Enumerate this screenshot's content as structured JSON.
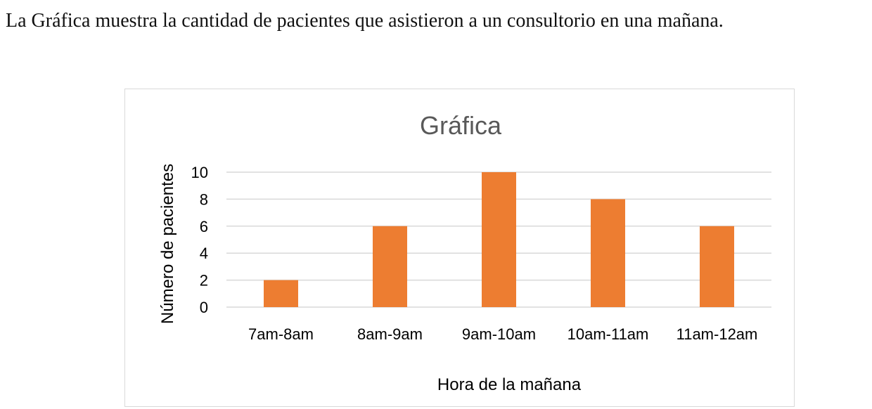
{
  "intro_text": "La Gráfica muestra la cantidad de pacientes que asistieron a un consultorio en una mañana.",
  "colors": {
    "bar": "#ED7D31",
    "grid": "#D9D9D9",
    "title": "#595959"
  },
  "chart_data": {
    "type": "bar",
    "title": "Gráfica",
    "xlabel": "Hora de la mañana",
    "ylabel": "Número de pacientes",
    "categories": [
      "7am-8am",
      "8am-9am",
      "9am-10am",
      "10am-11am",
      "11am-12am"
    ],
    "values": [
      2,
      6,
      10,
      8,
      6
    ],
    "ylim": [
      0,
      10
    ],
    "yticks": [
      0,
      2,
      4,
      6,
      8,
      10
    ],
    "grid": true,
    "legend": "none"
  }
}
